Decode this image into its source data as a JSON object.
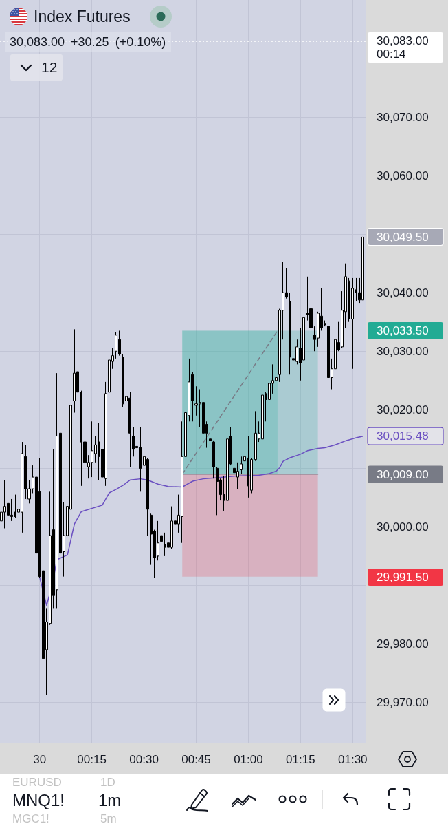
{
  "chart_data": {
    "type": "candlestick",
    "title": "Index Futures",
    "subtitle": "30,083.00 +30.25 (+0.10%)",
    "x": [
      "--01-29T23:49",
      "--01-29T23:50",
      "--01-29T23:51",
      "--01-29T23:52",
      "--01-29T23:53",
      "--01-29T23:54",
      "--01-29T23:55",
      "--01-29T23:56",
      "--01-29T23:57",
      "--01-29T23:58",
      "--01-29T23:59",
      "--01-30T00:00",
      "--01-30T00:01",
      "--01-30T00:02",
      "--01-30T00:03",
      "--01-30T00:04",
      "--01-30T00:05",
      "--01-30T00:06",
      "--01-30T00:07",
      "--01-30T00:08",
      "--01-30T00:09",
      "--01-30T00:10",
      "--01-30T00:11",
      "--01-30T00:12",
      "--01-30T00:13",
      "--01-30T00:14",
      "--01-30T00:15",
      "--01-30T00:16",
      "--01-30T00:17",
      "--01-30T00:18",
      "--01-30T00:19",
      "--01-30T00:20",
      "--01-30T00:21",
      "--01-30T00:22",
      "--01-30T00:23",
      "--01-30T00:24",
      "--01-30T00:25",
      "--01-30T00:26",
      "--01-30T00:27",
      "--01-30T00:28",
      "--01-30T00:29",
      "--01-30T00:30",
      "--01-30T00:31",
      "--01-30T00:32",
      "--01-30T00:33",
      "--01-30T00:34",
      "--01-30T00:35",
      "--01-30T00:36",
      "--01-30T00:37",
      "--01-30T00:38",
      "--01-30T00:39",
      "--01-30T00:40",
      "--01-30T00:41",
      "--01-30T00:42",
      "--01-30T00:43",
      "--01-30T00:44",
      "--01-30T00:45",
      "--01-30T00:46",
      "--01-30T00:47",
      "--01-30T00:48",
      "--01-30T00:49",
      "--01-30T00:50",
      "--01-30T00:51",
      "--01-30T00:52",
      "--01-30T00:53",
      "--01-30T00:54",
      "--01-30T00:55",
      "--01-30T00:56",
      "--01-30T00:57",
      "--01-30T00:58",
      "--01-30T00:59",
      "--01-30T01:00",
      "--01-30T01:01",
      "--01-30T01:02",
      "--01-30T01:03",
      "--01-30T01:04",
      "--01-30T01:05",
      "--01-30T01:06",
      "--01-30T01:07",
      "--01-30T01:08",
      "--01-30T01:09",
      "--01-30T01:10",
      "--01-30T01:11",
      "--01-30T01:12",
      "--01-30T01:13",
      "--01-30T01:14",
      "--01-30T01:15",
      "--01-30T01:16",
      "--01-30T01:17",
      "--01-30T01:18",
      "--01-30T01:19",
      "--01-30T01:20",
      "--01-30T01:21",
      "--01-30T01:22",
      "--01-30T01:23",
      "--01-30T01:24",
      "--01-30T01:25",
      "--01-30T01:26",
      "--01-30T01:27",
      "--01-30T01:28",
      "--01-30T01:29",
      "--01-30T01:30",
      "--01-30T01:31",
      "--01-30T01:32",
      "--01-30T01:33"
    ],
    "ohlc": [
      [
        30001,
        30006.25,
        29999.75,
        30002.5
      ],
      [
        30002.5,
        30008,
        29999.75,
        30003.5
      ],
      [
        30004,
        30005.75,
        30001.5,
        30002
      ],
      [
        30002,
        30004.75,
        30001,
        30001.75
      ],
      [
        30002.5,
        30005.5,
        30001.5,
        30001.75
      ],
      [
        30002.5,
        30007,
        30002.25,
        30003
      ],
      [
        30002.5,
        30014.5,
        29999,
        30012.5
      ],
      [
        30012,
        30014,
        30004.75,
        30006.5
      ],
      [
        30004.75,
        30008,
        30004,
        30006.5
      ],
      [
        30006.5,
        30010.5,
        30005.75,
        30008.5
      ],
      [
        30008.5,
        30010.5,
        29991.25,
        29995.5
      ],
      [
        30006,
        30011.75,
        29991.25,
        29991.5
      ],
      [
        29992.5,
        29993,
        29977,
        29977.5
      ],
      [
        29979,
        29986,
        29971.25,
        29983.75
      ],
      [
        29983.5,
        30006,
        29983.25,
        29998.5
      ],
      [
        29999.5,
        30013.25,
        29986,
        29988.25
      ],
      [
        29989.25,
        30026.25,
        29986,
        30015.5
      ],
      [
        30016,
        30016.75,
        29987.75,
        29995.5
      ],
      [
        29995.75,
        30004.25,
        29991.5,
        29998.5
      ],
      [
        29998.5,
        30004.25,
        29990.5,
        30003.5
      ],
      [
        30003,
        30028.5,
        30002.5,
        30020.75
      ],
      [
        30021.5,
        30033.75,
        30019.5,
        30026.25
      ],
      [
        30026.5,
        30029.25,
        30021.75,
        30023
      ],
      [
        30023,
        30023.25,
        30007,
        30014.5
      ],
      [
        30014.5,
        30018,
        30005.75,
        30011
      ],
      [
        30010.25,
        30012.25,
        30008.25,
        30011
      ],
      [
        30011,
        30018,
        30008.5,
        30013
      ],
      [
        30012.5,
        30015.5,
        30011,
        30014
      ],
      [
        30014.5,
        30017.75,
        30008,
        30012
      ],
      [
        30013.25,
        30014.75,
        30003.5,
        30008.5
      ],
      [
        30008.25,
        30024.75,
        30007,
        30022.75
      ],
      [
        30023,
        30039.5,
        30021.75,
        30028.5
      ],
      [
        30028.25,
        30030.5,
        30027,
        30029.25
      ],
      [
        30030,
        30033.25,
        30028.75,
        30032.75
      ],
      [
        30032,
        30033.5,
        30029.25,
        30029.5
      ],
      [
        30029,
        30029.5,
        30020.5,
        30021
      ],
      [
        30021.5,
        30028.75,
        30018,
        30022.25
      ],
      [
        30022,
        30023,
        30010.25,
        30016
      ],
      [
        30015.5,
        30017,
        30012,
        30013.25
      ],
      [
        30013.75,
        30017,
        30012.75,
        30013.5
      ],
      [
        30013.5,
        30017,
        30006,
        30010
      ],
      [
        30010.5,
        30017,
        30007.75,
        30012
      ],
      [
        30011.5,
        30011.75,
        29998.5,
        30003
      ],
      [
        30002,
        30002.25,
        29993.5,
        29998.75
      ],
      [
        29999.25,
        29999.5,
        29991.25,
        29994.75
      ],
      [
        29995,
        30001,
        29994.25,
        29997.25
      ],
      [
        29998.5,
        30001.75,
        29995,
        29997.5
      ],
      [
        29997,
        29999,
        29995,
        29996.5
      ],
      [
        29997.25,
        29999.75,
        29994.25,
        29996.5
      ],
      [
        29996.5,
        30003.5,
        29996.25,
        30001
      ],
      [
        30001,
        30002.25,
        29999.75,
        30000.5
      ],
      [
        30000.5,
        30005.5,
        29999,
        30002
      ],
      [
        30001.75,
        30018,
        29997.25,
        30012
      ],
      [
        30012,
        30025.5,
        30010.75,
        30019.5
      ],
      [
        30019,
        30028.75,
        30018,
        30024.75
      ],
      [
        30026,
        30026.5,
        30018,
        30021.5
      ],
      [
        30020.75,
        30024,
        30019,
        30021
      ],
      [
        30021,
        30023.5,
        30017,
        30021.25
      ],
      [
        30021.25,
        30022,
        30015.75,
        30016
      ],
      [
        30017.5,
        30018,
        30013.5,
        30016
      ],
      [
        30015,
        30016.75,
        30012.75,
        30014.75
      ],
      [
        30014.5,
        30014.75,
        30008.25,
        30010.25
      ],
      [
        30010,
        30010.25,
        30002,
        30007.75
      ],
      [
        30008,
        30008.25,
        30004.5,
        30005.5
      ],
      [
        30005.5,
        30008.75,
        30002.75,
        30004.5
      ],
      [
        30004.5,
        30016.25,
        30004.25,
        30015
      ],
      [
        30015.5,
        30017,
        30010.5,
        30010.75
      ],
      [
        30010,
        30011.25,
        30005.25,
        30009.25
      ],
      [
        30008.5,
        30011,
        30006.5,
        30009.5
      ],
      [
        30009.75,
        30012,
        30009,
        30010.75
      ],
      [
        30011.25,
        30012.5,
        30010,
        30012
      ],
      [
        30011.75,
        30015.5,
        30005,
        30007
      ],
      [
        30006.25,
        30011.75,
        30005.75,
        30011.5
      ],
      [
        30011.5,
        30019.75,
        30011.25,
        30016
      ],
      [
        30015,
        30018,
        30014.5,
        30016
      ],
      [
        30015,
        30024,
        30014.75,
        30022.5
      ],
      [
        30022.75,
        30023,
        30018,
        30021.75
      ],
      [
        30021.75,
        30025.75,
        30018,
        30024.5
      ],
      [
        30024.5,
        30027.75,
        30022.75,
        30025
      ],
      [
        30025,
        30027.75,
        30022.75,
        30025.5
      ],
      [
        30026,
        30037.25,
        30024.75,
        30037
      ],
      [
        30037,
        30045.25,
        30032,
        30040
      ],
      [
        30040,
        30044.25,
        30039,
        30039.25
      ],
      [
        30038.5,
        30040,
        30026,
        30029
      ],
      [
        30028.75,
        30032.75,
        30027.5,
        30028.5
      ],
      [
        30028.25,
        30032,
        30027.75,
        30030.75
      ],
      [
        30030.5,
        30034,
        30025,
        30028
      ],
      [
        30028.5,
        30038,
        30028,
        30035.75
      ],
      [
        30036.5,
        30042.75,
        30035.25,
        30036.25
      ],
      [
        30037.25,
        30043,
        30033.5,
        30034
      ],
      [
        30032.75,
        30034.25,
        30030,
        30032
      ],
      [
        30032.25,
        30036.75,
        30030.75,
        30036.5
      ],
      [
        30036,
        30040.75,
        30033.5,
        30034
      ],
      [
        30034.75,
        30035.25,
        30034.25,
        30034.5
      ],
      [
        30034.25,
        30034.25,
        30022,
        30025.5
      ],
      [
        30025.5,
        30028.75,
        30023.5,
        30027
      ],
      [
        30027,
        30032.25,
        30026.5,
        30032
      ],
      [
        30031.5,
        30035,
        30030,
        30030.25
      ],
      [
        30030.75,
        30040.25,
        30030.5,
        30037
      ],
      [
        30036.75,
        30045,
        30034,
        30042.75
      ],
      [
        30042,
        30042.5,
        30035,
        30035.5
      ],
      [
        30035.5,
        30042.5,
        30027,
        30040.75
      ],
      [
        30040.5,
        30042.5,
        30038.5,
        30040
      ],
      [
        30040,
        30042.5,
        30038.25,
        30038.75
      ],
      [
        30038.75,
        30049.5,
        30038.25,
        30049.5
      ]
    ],
    "series": [
      {
        "type": "line",
        "color": "#787b86",
        "x": [
          "--01-30T00:41",
          "--01-30T01:20"
        ],
        "values": [
          30009,
          30009
        ]
      },
      {
        "type": "line",
        "color": "#787b86",
        "line_style": "dashed",
        "x": [
          "--01-30T00:41",
          "--01-30T01:08:24"
        ],
        "values": [
          30009,
          30033.5
        ]
      },
      {
        "type": "line",
        "color": "#6a4fc1",
        "x": [
          "--01-30T00:00",
          "--01-30T00:02",
          "--01-30T00:03:30",
          "--01-30T00:05",
          "--01-30T00:08",
          "--01-30T00:10",
          "--01-30T00:12",
          "--01-30T00:18",
          "--01-30T00:20",
          "--01-30T00:22",
          "--01-30T00:24",
          "--01-30T00:26",
          "--01-30T00:29",
          "--01-30T00:31",
          "--01-30T00:34",
          "--01-30T00:37",
          "--01-30T00:41",
          "--01-30T00:44",
          "--01-30T00:47",
          "--01-30T00:51",
          "--01-30T00:57",
          "--01-30T01:03",
          "--01-30T01:06",
          "--01-30T01:08",
          "--01-30T01:09",
          "--01-30T01:10",
          "--01-30T01:12",
          "--01-30T01:15",
          "--01-30T01:17",
          "--01-30T01:20",
          "--01-30T01:22",
          "--01-30T01:25",
          "--01-30T01:28",
          "--01-30T01:31",
          "--01-30T01:33"
        ],
        "values": [
          29991.4,
          29986.6,
          29989.8,
          29994.4,
          29995.2,
          30000.5,
          30002.6,
          30003.7,
          30005.8,
          30006.4,
          30007.1,
          30008.0,
          30008.2,
          30008.0,
          30007.3,
          30006.9,
          30006.8,
          30007.8,
          30008.2,
          30008.4,
          30008.7,
          30008.8,
          30009.1,
          30009.5,
          30010.1,
          30011.2,
          30011.8,
          30012.4,
          30013.0,
          30013.4,
          30013.5,
          30014.0,
          30014.7,
          30015.2,
          30015.48
        ],
        "value_labels": [
          null,
          null,
          null,
          null,
          null,
          null,
          null,
          null,
          null,
          null,
          null,
          null,
          null,
          null,
          null,
          null,
          null,
          null,
          null,
          null,
          null,
          null,
          null,
          null,
          null,
          null,
          null,
          null,
          null,
          null,
          null,
          null,
          null,
          null,
          "30,015.48"
        ]
      }
    ],
    "bands": [
      {
        "axis": "y",
        "from": 30009,
        "to": 30033.5,
        "color": "#22ab94"
      },
      {
        "axis": "y",
        "from": 29991.5,
        "to": 30009,
        "color": "#f23645"
      }
    ],
    "xlim": [
      "--01-29T23:48:36",
      "--01-30T01:33:54"
    ],
    "xticks": [
      {
        "value": "--01-30T00:00",
        "label": "30"
      },
      {
        "value": "--01-30T00:15",
        "label": "00:15"
      },
      {
        "value": "--01-30T00:30",
        "label": "00:30"
      },
      {
        "value": "--01-30T00:45",
        "label": "00:45"
      },
      {
        "value": "--01-30T01:00",
        "label": "01:00"
      },
      {
        "value": "--01-30T01:15",
        "label": "01:15"
      },
      {
        "value": "--01-30T01:30",
        "label": "01:30"
      }
    ],
    "ylim": [
      29963,
      30090
    ],
    "yticks": [
      {
        "value": 29970,
        "label": "29,970.00"
      },
      {
        "value": 29980,
        "label": "29,980.00"
      },
      {
        "value": 29990,
        "label": null
      },
      {
        "value": 30000,
        "label": "30,000.00"
      },
      {
        "value": 30010,
        "label": null
      },
      {
        "value": 30020,
        "label": "30,020.00"
      },
      {
        "value": 30030,
        "label": "30,030.00"
      },
      {
        "value": 30040,
        "label": "30,040.00"
      },
      {
        "value": 30050,
        "label": null
      },
      {
        "value": 30060,
        "label": "30,060.00"
      },
      {
        "value": 30070,
        "label": "30,070.00"
      },
      {
        "value": 30080,
        "label": null
      }
    ],
    "grid": true,
    "ref_lines": [
      {
        "axis": "y",
        "value": 30083,
        "label": "30,083.00\n00:14",
        "line_style": "dotted",
        "color": "#ffffff"
      }
    ],
    "annotations": [
      "12",
      "EURUSD",
      "1D",
      "MNQ1!",
      "1m",
      "MGC1!",
      "5m",
      "30,049.50",
      "30,033.50",
      "30,009.00",
      "29,991.50"
    ]
  }
}
